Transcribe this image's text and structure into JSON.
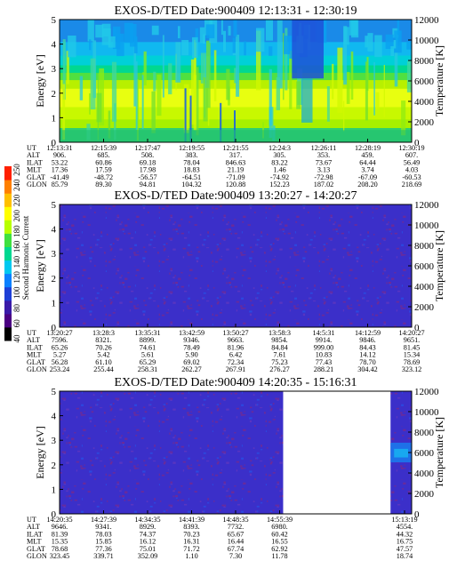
{
  "colorbar": {
    "label": "Second Harmonic Current",
    "ticks": [
      "40",
      "60",
      "80",
      "100",
      "120",
      "140",
      "160",
      "180",
      "200",
      "220",
      "240",
      "250"
    ],
    "colors": [
      "#000000",
      "#4b0082",
      "#3a1aa8",
      "#1e3fd6",
      "#0a80ff",
      "#00c8f0",
      "#00d890",
      "#40e040",
      "#b8ff00",
      "#ffff00",
      "#ffc000",
      "#ff8000",
      "#ff2000"
    ]
  },
  "row_labels": [
    "UT",
    "ALT",
    "ILAT",
    "MLT",
    "GLAT",
    "GLON"
  ],
  "chart_data": [
    {
      "type": "heatmap",
      "title": "EXOS-D/TED   Date:900409   12:13:31 - 12:30:19",
      "ylabel": "Energy [eV]",
      "ylabel_right": "Temperature [K]",
      "ylim": [
        0,
        5
      ],
      "yticks": [
        "0",
        "1",
        "2",
        "3",
        "4",
        "5"
      ],
      "ylim_right": [
        0,
        12000
      ],
      "yticks_right": [
        "0",
        "2000",
        "4000",
        "6000",
        "8000",
        "10000",
        "12000"
      ],
      "pattern": "spectrogram",
      "table_columns": [
        [
          "12:13:31",
          "906.",
          "53.22",
          "17.36",
          "-41.49",
          "85.79"
        ],
        [
          "12:15:39",
          "685.",
          "60.86",
          "17.59",
          "-48.72",
          "89.30"
        ],
        [
          "12:17:47",
          "508.",
          "69.18",
          "17.98",
          "-56.57",
          "94.81"
        ],
        [
          "12:19:55",
          "383.",
          "78.04",
          "18.83",
          "-64.51",
          "104.32"
        ],
        [
          "12:21:55",
          "317.",
          "846.63",
          "21.19",
          "-71.09",
          "120.88"
        ],
        [
          "12:24:3",
          "305.",
          "83.22",
          "1.46",
          "-74.92",
          "152.23"
        ],
        [
          "12:26:11",
          "353.",
          "73.67",
          "3.13",
          "-72.98",
          "187.02"
        ],
        [
          "12:28:19",
          "459.",
          "64.44",
          "3.74",
          "-67.09",
          "208.20"
        ],
        [
          "12:30:19",
          "607.",
          "56.49",
          "4.03",
          "-60.53",
          "218.69"
        ]
      ]
    },
    {
      "type": "heatmap",
      "title": "EXOS-D/TED   Date:900409   13:20:27 - 14:20:27",
      "ylabel": "Energy [eV]",
      "ylabel_right": "Temperature [K]",
      "ylim": [
        0,
        5
      ],
      "yticks": [
        "0",
        "1",
        "2",
        "3",
        "4",
        "5"
      ],
      "ylim_right": [
        0,
        12000
      ],
      "yticks_right": [
        "0",
        "2000",
        "4000",
        "6000",
        "8000",
        "10000",
        "12000"
      ],
      "pattern": "noise",
      "table_columns": [
        [
          "13:20:27",
          "7596.",
          "65.26",
          "5.27",
          "56.28",
          "253.24"
        ],
        [
          "13:28:3",
          "8321.",
          "70.26",
          "5.42",
          "61.10",
          "255.44"
        ],
        [
          "13:35:31",
          "8899.",
          "74.61",
          "5.61",
          "65.29",
          "258.31"
        ],
        [
          "13:42:59",
          "9346.",
          "78.49",
          "5.90",
          "69.02",
          "262.27"
        ],
        [
          "13:50:27",
          "9663.",
          "81.96",
          "6.42",
          "72.34",
          "267.91"
        ],
        [
          "13:58:3",
          "9854.",
          "84.84",
          "7.61",
          "75.23",
          "276.27"
        ],
        [
          "14:5:31",
          "9914.",
          "999.00",
          "10.83",
          "77.43",
          "288.21"
        ],
        [
          "14:12:59",
          "9846.",
          "84.43",
          "14.12",
          "78.70",
          "304.42"
        ],
        [
          "14:20:27",
          "9651.",
          "81.45",
          "15.34",
          "78.69",
          "323.12"
        ]
      ]
    },
    {
      "type": "heatmap",
      "title": "EXOS-D/TED   Date:900409   14:20:35 - 15:16:31",
      "ylabel": "Energy [eV]",
      "ylabel_right": "Temperature [K]",
      "ylim": [
        0,
        5
      ],
      "yticks": [
        "0",
        "1",
        "2",
        "3",
        "4",
        "5"
      ],
      "ylim_right": [
        0,
        12000
      ],
      "yticks_right": [
        "0",
        "2000",
        "4000",
        "6000",
        "8000",
        "10000",
        "12000"
      ],
      "pattern": "partial",
      "table_columns": [
        [
          "14:20:35",
          "9646.",
          "81.39",
          "15.35",
          "78.68",
          "323.45"
        ],
        [
          "14:27:39",
          "9341.",
          "78.03",
          "15.85",
          "77.36",
          "339.71"
        ],
        [
          "14:34:35",
          "8929.",
          "74.37",
          "16.12",
          "75.01",
          "352.09"
        ],
        [
          "14:41:39",
          "8393.",
          "70.23",
          "16.31",
          "71.72",
          "1.10"
        ],
        [
          "14:48:35",
          "7732.",
          "65.67",
          "16.44",
          "67.74",
          "7.30"
        ],
        [
          "14:55:39",
          "6980.",
          "60.42",
          "16.55",
          "62.92",
          "11.78"
        ],
        [
          "15:13:19",
          "4554.",
          "44.32",
          "16.75",
          "47.57",
          "18.74"
        ]
      ]
    }
  ]
}
